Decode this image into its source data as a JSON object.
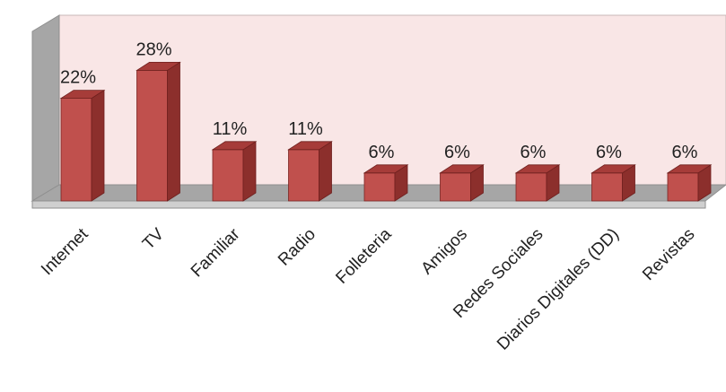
{
  "chart_data": {
    "type": "bar",
    "categories": [
      "Internet",
      "TV",
      "Familiar",
      "Radio",
      "Folleteria",
      "Amigos",
      "Redes Sociales",
      "Diarios Digitales (DD)",
      "Revistas"
    ],
    "values": [
      22,
      28,
      11,
      11,
      6,
      6,
      6,
      6,
      6
    ],
    "data_labels": [
      "22%",
      "28%",
      "11%",
      "11%",
      "6%",
      "6%",
      "6%",
      "6%",
      "6%"
    ],
    "value_unit": "%",
    "title": "",
    "xlabel": "",
    "ylabel": "",
    "ylim": [
      0,
      30
    ],
    "grid": false,
    "legend": "none",
    "style": "3d-column",
    "colors": {
      "bar_front": "#c0504d",
      "bar_side": "#8c2f2c",
      "bar_top": "#a63c39",
      "back_wall": "#f9e6e6",
      "side_wall": "#a6a6a6",
      "floor": "#a6a6a6"
    }
  }
}
